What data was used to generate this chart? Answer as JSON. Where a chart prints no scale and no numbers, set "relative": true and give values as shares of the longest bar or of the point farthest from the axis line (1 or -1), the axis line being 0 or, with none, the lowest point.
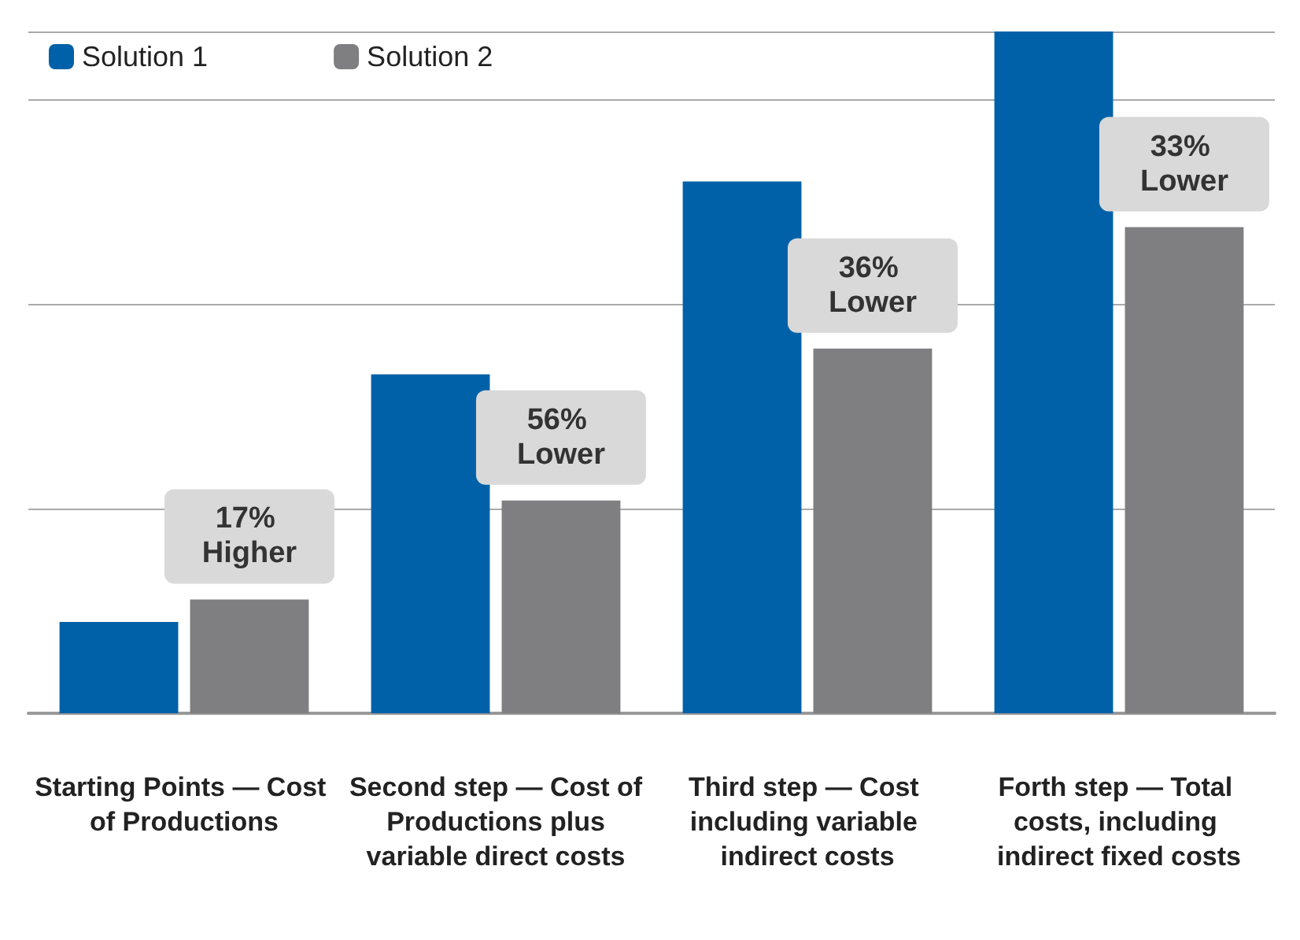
{
  "chart_data": {
    "type": "bar",
    "relative": true,
    "grid": "y",
    "legend": "top left",
    "categories": [
      "Starting Points — Cost of Productions",
      "Second step — Cost of Productions plus variable direct costs",
      "Third step — Cost including variable indirect costs",
      "Forth step — Total costs, including indirect fixed costs"
    ],
    "series": [
      {
        "name": "Solution 1",
        "color": "#0061a8",
        "values": [
          0.134,
          0.497,
          0.78,
          1
        ]
      },
      {
        "name": "Solution 2",
        "color": "#7f7f82",
        "values": [
          0.167,
          0.312,
          0.535,
          0.713
        ]
      }
    ],
    "annotations": [
      "17% Higher",
      "56% Lower",
      "36% Lower",
      "33% Lower"
    ]
  }
}
